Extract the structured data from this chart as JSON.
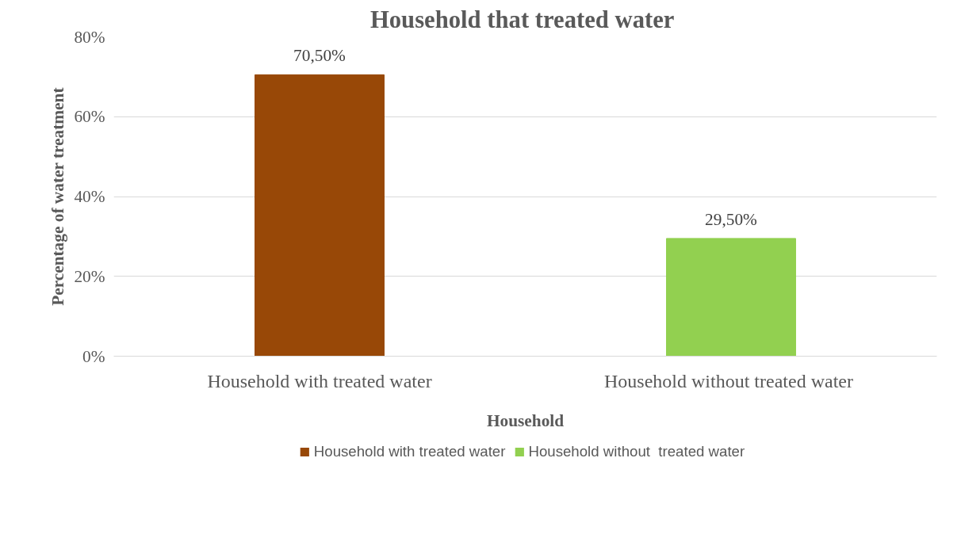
{
  "chart_data": {
    "type": "bar",
    "title": "Household that treated  water",
    "xlabel": "Household",
    "ylabel": "Percentage of water treatment",
    "categories": [
      "Household with treated water",
      "Household without  treated water"
    ],
    "series": [
      {
        "name": "Household with treated water",
        "color": "#984807",
        "values": [
          70.5,
          null
        ],
        "value_labels": [
          "70,50%",
          null
        ]
      },
      {
        "name": "Household without  treated water",
        "color": "#92d050",
        "values": [
          null,
          29.5
        ],
        "value_labels": [
          null,
          "29,50%"
        ]
      }
    ],
    "ylim": [
      0,
      80
    ],
    "yticks": [
      {
        "value": 0,
        "label": "0%"
      },
      {
        "value": 20,
        "label": "20%"
      },
      {
        "value": 40,
        "label": "40%"
      },
      {
        "value": 60,
        "label": "60%"
      },
      {
        "value": 80,
        "label": "80%"
      }
    ],
    "grid": "y",
    "legend": "bottom"
  }
}
